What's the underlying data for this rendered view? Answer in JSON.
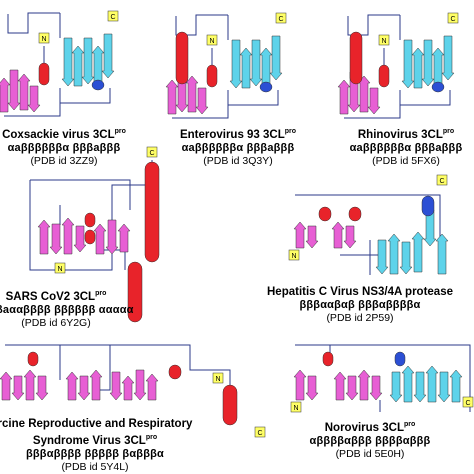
{
  "colors": {
    "helix": "#e8232a",
    "strand_a": "#e75fd4",
    "strand_b": "#5ed3ea",
    "helix_b": "#2c4fd4",
    "line": "#2b3a8a",
    "label_box": "#ffff66"
  },
  "terminus": {
    "n": "N",
    "c": "C"
  },
  "panels": [
    {
      "id": "coxsackie",
      "name": "Coxsackie virus 3CL",
      "sup": "pro",
      "ss": "αaββββββα βββaβββ",
      "pdb": "(PDB id 3ZZ9)"
    },
    {
      "id": "enterovirus",
      "name": "Enterovirus 93 3CL",
      "sup": "pro",
      "ss": "αaββββββα βββaβββ",
      "pdb": "(PDB id 3Q3Y)"
    },
    {
      "id": "rhinovirus",
      "name": "Rhinovirus 3CL",
      "sup": "pro",
      "ss": "αaββββββα βββaβββ",
      "pdb": "(PDB id 5FX6)"
    },
    {
      "id": "sars",
      "name": "SARS CoV2 3CL",
      "sup": "pro",
      "ss": "βaααββββ ββββββ ααααα",
      "pdb": "(PDB id 6Y2G)"
    },
    {
      "id": "hcv",
      "name": "Hepatitis C Virus NS3/4A protease",
      "sup": "",
      "ss": "βββααβαβ βββαββββα",
      "pdb": "(PDB id 2P59)"
    },
    {
      "id": "prrsv",
      "name": "rcine Reproductive and Respiratory",
      "name2": "Syndrome Virus 3CL",
      "sup": "pro",
      "ss": "βββαββββ βββββ βαβββα",
      "pdb": "(PDB id 5Y4L)"
    },
    {
      "id": "norovirus",
      "name": "Norovirus 3CL",
      "sup": "pro",
      "ss": "αββββαβββ ββββαβββ",
      "pdb": "(PDB id 5E0H)"
    }
  ]
}
